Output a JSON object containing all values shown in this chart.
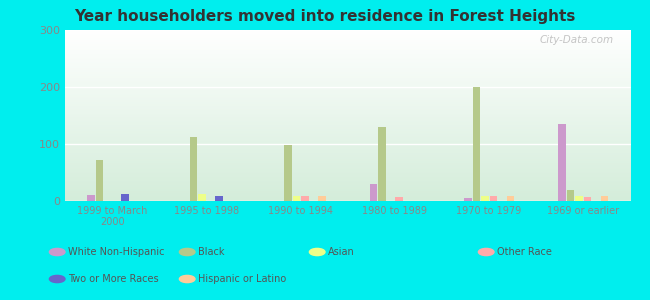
{
  "title": "Year householders moved into residence in Forest Heights",
  "categories": [
    "1999 to March\n2000",
    "1995 to 1998",
    "1990 to 1994",
    "1980 to 1989",
    "1970 to 1979",
    "1969 or earlier"
  ],
  "series_order": [
    "White Non-Hispanic",
    "Black",
    "Asian",
    "Other Race",
    "Two or More Races",
    "Hispanic or Latino"
  ],
  "series": {
    "White Non-Hispanic": [
      10,
      0,
      0,
      30,
      5,
      135
    ],
    "Black": [
      72,
      113,
      98,
      130,
      200,
      20
    ],
    "Asian": [
      0,
      13,
      8,
      0,
      8,
      8
    ],
    "Other Race": [
      0,
      0,
      8,
      7,
      8,
      7
    ],
    "Two or More Races": [
      13,
      8,
      0,
      0,
      0,
      0
    ],
    "Hispanic or Latino": [
      0,
      0,
      8,
      0,
      8,
      8
    ]
  },
  "colors": {
    "White Non-Hispanic": "#cc99cc",
    "Black": "#b5c98a",
    "Asian": "#eeff88",
    "Other Race": "#ffaaaa",
    "Two or More Races": "#6666cc",
    "Hispanic or Latino": "#ffcc99"
  },
  "ylim": [
    0,
    300
  ],
  "yticks": [
    0,
    100,
    200,
    300
  ],
  "outer_background": "#00eeee",
  "watermark": "City-Data.com",
  "legend_order": [
    "White Non-Hispanic",
    "Black",
    "Asian",
    "Other Race",
    "Two or More Races",
    "Hispanic or Latino"
  ]
}
